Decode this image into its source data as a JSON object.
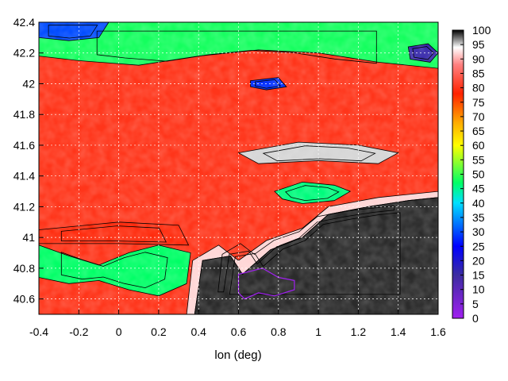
{
  "chart_data": {
    "type": "heatmap",
    "title": "",
    "xlabel": "lon (deg)",
    "ylabel": "",
    "xlim": [
      -0.4,
      1.6
    ],
    "ylim": [
      40.5,
      42.4
    ],
    "x_ticks": [
      -0.4,
      -0.2,
      0,
      0.2,
      0.4,
      0.6,
      0.8,
      1,
      1.2,
      1.4,
      1.6
    ],
    "x_tick_labels": [
      "-0.4",
      "-0.2",
      "0",
      "0.2",
      "0.4",
      "0.6",
      "0.8",
      "1",
      "1.2",
      "1.4",
      "1.6"
    ],
    "y_ticks": [
      40.6,
      40.8,
      41,
      41.2,
      41.4,
      41.6,
      41.8,
      42,
      42.2,
      42.4
    ],
    "y_tick_labels": [
      "40.6",
      "40.8",
      "41",
      "41.2",
      "41.4",
      "41.6",
      "41.8",
      "42",
      "42.2",
      "42.4"
    ],
    "grid": true,
    "colorbar": {
      "range": [
        0,
        100
      ],
      "ticks": [
        0,
        5,
        10,
        15,
        20,
        25,
        30,
        35,
        40,
        45,
        50,
        55,
        60,
        65,
        70,
        75,
        80,
        85,
        90,
        95,
        100
      ],
      "tick_labels": [
        "0",
        "5",
        "10",
        "15",
        "20",
        "25",
        "30",
        "35",
        "40",
        "45",
        "50",
        "55",
        "60",
        "65",
        "70",
        "75",
        "80",
        "85",
        "90",
        "95",
        "100"
      ],
      "palette": [
        {
          "v": 0,
          "c": "#a020f0"
        },
        {
          "v": 15,
          "c": "#3c2ca0"
        },
        {
          "v": 25,
          "c": "#0000ff"
        },
        {
          "v": 40,
          "c": "#00e0ff"
        },
        {
          "v": 47,
          "c": "#00ff66"
        },
        {
          "v": 60,
          "c": "#ffff00"
        },
        {
          "v": 68,
          "c": "#ffaa00"
        },
        {
          "v": 78,
          "c": "#ff2200"
        },
        {
          "v": 88,
          "c": "#ff8080"
        },
        {
          "v": 94,
          "c": "#ffffff"
        },
        {
          "v": 100,
          "c": "#000000"
        }
      ]
    },
    "regions": [
      {
        "name": "sea",
        "polygon": [
          [
            0.38,
            40.5
          ],
          [
            0.42,
            40.85
          ],
          [
            0.56,
            40.88
          ],
          [
            0.62,
            40.76
          ],
          [
            0.76,
            40.92
          ],
          [
            0.92,
            41.0
          ],
          [
            1.05,
            41.15
          ],
          [
            1.25,
            41.2
          ],
          [
            1.45,
            41.24
          ],
          [
            1.6,
            41.26
          ],
          [
            1.6,
            40.5
          ]
        ],
        "value": 99
      },
      {
        "name": "sea-shelf-band",
        "polygon": [
          [
            0.34,
            40.5
          ],
          [
            0.37,
            40.85
          ],
          [
            0.5,
            40.95
          ],
          [
            0.6,
            40.85
          ],
          [
            0.74,
            40.98
          ],
          [
            0.92,
            41.06
          ],
          [
            1.05,
            41.2
          ],
          [
            1.3,
            41.26
          ],
          [
            1.6,
            41.3
          ],
          [
            1.6,
            41.26
          ],
          [
            1.45,
            41.24
          ],
          [
            1.25,
            41.2
          ],
          [
            1.05,
            41.15
          ],
          [
            0.92,
            41.0
          ],
          [
            0.76,
            40.92
          ],
          [
            0.62,
            40.76
          ],
          [
            0.56,
            40.88
          ],
          [
            0.42,
            40.85
          ],
          [
            0.38,
            40.5
          ]
        ],
        "value": 92
      },
      {
        "name": "southwest-green",
        "polygon": [
          [
            -0.4,
            40.95
          ],
          [
            -0.25,
            40.88
          ],
          [
            -0.1,
            40.82
          ],
          [
            0.05,
            40.9
          ],
          [
            0.2,
            40.95
          ],
          [
            0.36,
            40.9
          ],
          [
            0.34,
            40.7
          ],
          [
            0.2,
            40.62
          ],
          [
            0.05,
            40.66
          ],
          [
            -0.1,
            40.72
          ],
          [
            -0.25,
            40.7
          ],
          [
            -0.4,
            40.74
          ]
        ],
        "value": 47
      },
      {
        "name": "east-green-patch",
        "polygon": [
          [
            0.78,
            41.3
          ],
          [
            0.92,
            41.36
          ],
          [
            1.08,
            41.34
          ],
          [
            1.16,
            41.3
          ],
          [
            1.08,
            41.24
          ],
          [
            0.92,
            41.22
          ],
          [
            0.82,
            41.25
          ]
        ],
        "value": 46
      },
      {
        "name": "north-green-band",
        "polygon": [
          [
            -0.4,
            42.4
          ],
          [
            1.6,
            42.4
          ],
          [
            1.6,
            42.1
          ],
          [
            1.3,
            42.14
          ],
          [
            1.0,
            42.2
          ],
          [
            0.7,
            42.22
          ],
          [
            0.4,
            42.18
          ],
          [
            0.1,
            42.12
          ],
          [
            -0.2,
            42.15
          ],
          [
            -0.4,
            42.18
          ]
        ],
        "value": 48
      },
      {
        "name": "north-west-blue",
        "polygon": [
          [
            -0.4,
            42.4
          ],
          [
            -0.05,
            42.4
          ],
          [
            -0.1,
            42.3
          ],
          [
            -0.25,
            42.28
          ],
          [
            -0.4,
            42.3
          ]
        ],
        "value": 30
      },
      {
        "name": "northeast-purple",
        "polygon": [
          [
            1.45,
            42.24
          ],
          [
            1.55,
            42.26
          ],
          [
            1.6,
            42.2
          ],
          [
            1.56,
            42.14
          ],
          [
            1.46,
            42.16
          ]
        ],
        "value": 16
      },
      {
        "name": "central-blue-spot",
        "polygon": [
          [
            0.66,
            42.02
          ],
          [
            0.8,
            42.04
          ],
          [
            0.84,
            41.98
          ],
          [
            0.74,
            41.96
          ],
          [
            0.66,
            41.98
          ]
        ],
        "value": 28
      },
      {
        "name": "inland-gray-band",
        "polygon": [
          [
            0.6,
            41.55
          ],
          [
            0.9,
            41.62
          ],
          [
            1.2,
            41.6
          ],
          [
            1.4,
            41.55
          ],
          [
            1.3,
            41.48
          ],
          [
            1.0,
            41.5
          ],
          [
            0.7,
            41.48
          ]
        ],
        "value": 95
      },
      {
        "name": "southwest-red-strip",
        "polygon": [
          [
            -0.4,
            41.05
          ],
          [
            0.0,
            41.1
          ],
          [
            0.3,
            41.08
          ],
          [
            0.35,
            40.95
          ],
          [
            0.0,
            40.96
          ],
          [
            -0.4,
            40.96
          ]
        ],
        "value": 79
      }
    ],
    "contour_overlay": {
      "name": "purple outline",
      "color": "#a020f0",
      "polygon": [
        [
          0.6,
          40.76
        ],
        [
          0.72,
          40.8
        ],
        [
          0.8,
          40.74
        ],
        [
          0.88,
          40.72
        ],
        [
          0.88,
          40.66
        ],
        [
          0.78,
          40.62
        ],
        [
          0.7,
          40.64
        ],
        [
          0.63,
          40.6
        ],
        [
          0.6,
          40.64
        ]
      ]
    },
    "background_value": 80
  }
}
